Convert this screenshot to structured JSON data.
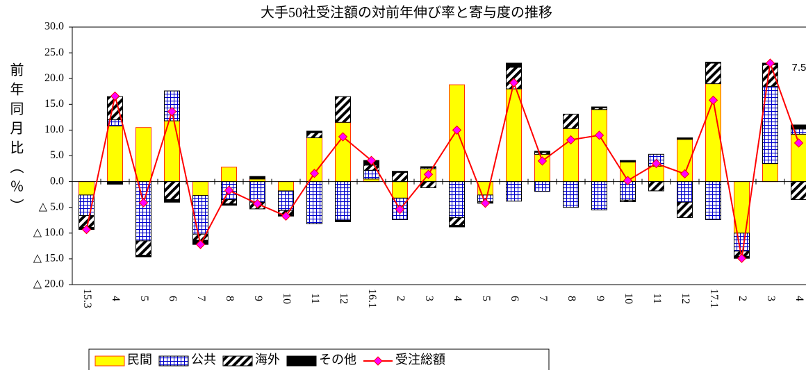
{
  "chart_data": {
    "type": "stacked-bar-line",
    "title": "大手50社受注額の対前年伸び率と寄与度の推移",
    "y_label": "前年同月比（％）",
    "categories": [
      "15.3",
      "4",
      "5",
      "6",
      "7",
      "8",
      "9",
      "10",
      "11",
      "12",
      "16.1",
      "2",
      "3",
      "4",
      "5",
      "6",
      "7",
      "8",
      "9",
      "10",
      "11",
      "12",
      "17.1",
      "2",
      "3",
      "4"
    ],
    "series": [
      {
        "name": "民間",
        "type": "bar",
        "pattern": "solid",
        "color": "#ffff00",
        "stroke": "#ff3300",
        "values": [
          -2.6,
          10.8,
          10.5,
          11.8,
          -2.7,
          2.8,
          0.5,
          -1.8,
          8.5,
          11.5,
          0.5,
          -3.2,
          2.5,
          18.8,
          -2.6,
          18,
          5.3,
          10.3,
          14,
          3.8,
          3.0,
          8.2,
          19,
          -10,
          3.5,
          9.2
        ]
      },
      {
        "name": "公共",
        "type": "bar",
        "pattern": "grid",
        "color": "#0000cc",
        "stroke": "#000000",
        "values": [
          -4,
          1.2,
          -11.5,
          5.8,
          -7.5,
          -3.5,
          -4,
          -3.8,
          -8.2,
          -7.5,
          1.7,
          -4.2,
          0.2,
          -7,
          -1.3,
          -3.8,
          -1.9,
          -5,
          -5.5,
          -3.6,
          2.3,
          -4,
          -7.4,
          -3.5,
          15,
          1
        ]
      },
      {
        "name": "海外",
        "type": "bar",
        "pattern": "diagonal",
        "color": "#000000",
        "stroke": "#000000",
        "values": [
          -2.3,
          4.5,
          -2.8,
          -3.5,
          -1.2,
          -0.8,
          -1.3,
          -0.8,
          1,
          5,
          1,
          1.8,
          -1.2,
          -1.5,
          -0.2,
          4.2,
          0.4,
          2.8,
          0.3,
          -0.3,
          -1.8,
          -3,
          4,
          -1,
          4.2,
          -3.5
        ]
      },
      {
        "name": "その他",
        "type": "bar",
        "pattern": "solid",
        "color": "#000000",
        "stroke": "#000000",
        "values": [
          -0.4,
          -0.5,
          -0.3,
          -0.5,
          -0.8,
          -0.3,
          0.5,
          -0.3,
          0.3,
          -0.3,
          0.9,
          0.2,
          0.2,
          -0.3,
          -0.1,
          0.8,
          0.2,
          0,
          0.2,
          0.3,
          0,
          0.3,
          0.2,
          -0.4,
          0.3,
          0.8
        ]
      },
      {
        "name": "受注総額",
        "type": "line",
        "color": "#ff0000",
        "marker_color": "#ff00ff",
        "values": [
          -9.3,
          16.6,
          -4.1,
          13.6,
          -12.2,
          -1.7,
          -4.3,
          -6.7,
          1.6,
          8.7,
          4.1,
          -5.4,
          1.4,
          10,
          -4.2,
          19.2,
          4,
          8.1,
          9,
          0.2,
          3.5,
          1.5,
          15.8,
          -14.9,
          23,
          7.5
        ],
        "value_labels": [
          null,
          null,
          null,
          null,
          null,
          null,
          null,
          null,
          null,
          null,
          null,
          null,
          null,
          null,
          null,
          null,
          null,
          null,
          null,
          null,
          null,
          null,
          null,
          null,
          null,
          "7.5"
        ]
      }
    ],
    "ylim": [
      -20,
      30
    ],
    "yticks": [
      {
        "value": 30,
        "label": "30.0"
      },
      {
        "value": 25,
        "label": "25.0"
      },
      {
        "value": 20,
        "label": "20.0"
      },
      {
        "value": 15,
        "label": "15.0"
      },
      {
        "value": 10,
        "label": "10.0"
      },
      {
        "value": 5,
        "label": "5.0"
      },
      {
        "value": 0,
        "label": "0.0"
      },
      {
        "value": -5,
        "label": "△ 5.0"
      },
      {
        "value": -10,
        "label": "△ 10.0"
      },
      {
        "value": -15,
        "label": "△ 15.0"
      },
      {
        "value": -20,
        "label": "△ 20.0"
      }
    ],
    "grid": false,
    "legend": "bottom-left"
  }
}
